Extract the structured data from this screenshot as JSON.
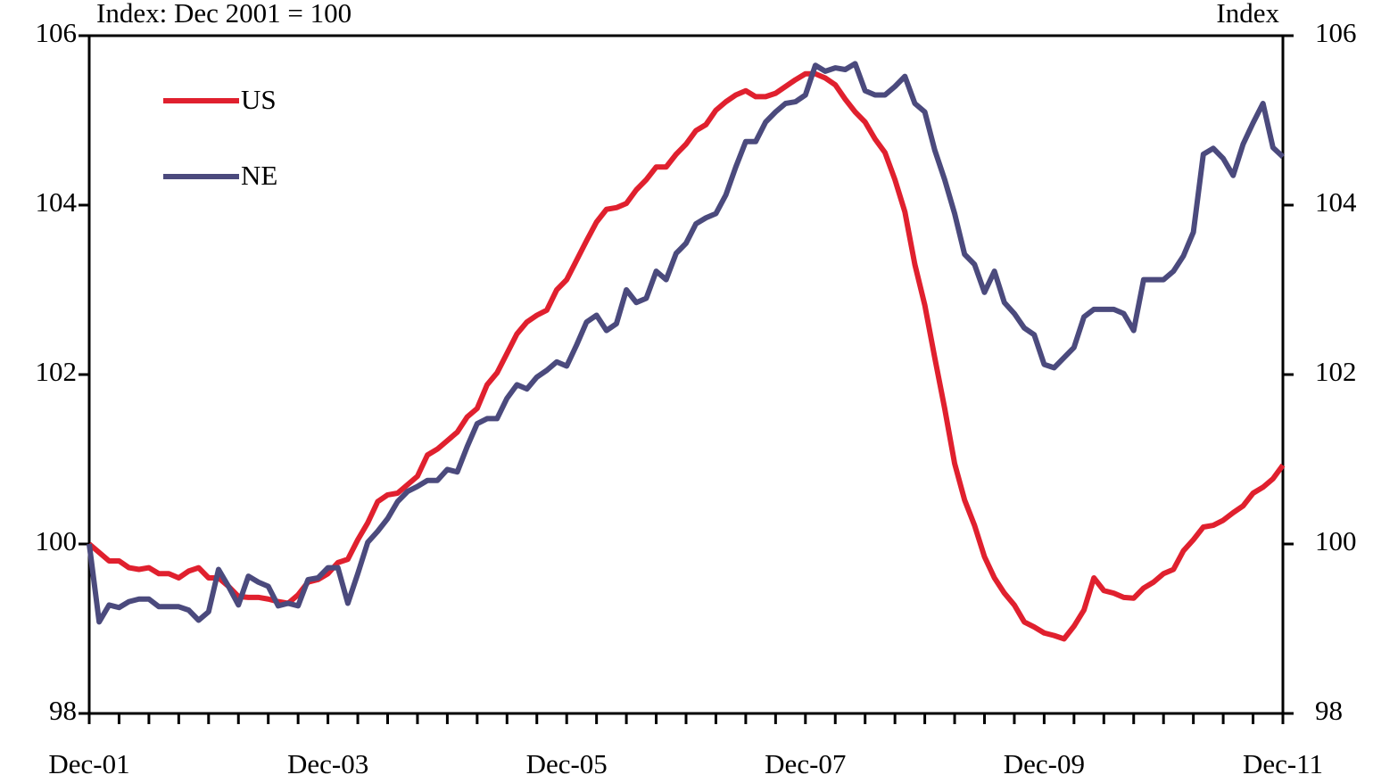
{
  "chart_data": {
    "type": "line",
    "y_label": "Index: Dec 2001 = 100",
    "y2_label": "Index",
    "categories": [
      "Dec-01",
      null,
      null,
      null,
      null,
      null,
      null,
      null,
      null,
      null,
      null,
      null,
      null,
      null,
      null,
      null,
      null,
      null,
      null,
      null,
      null,
      null,
      null,
      null,
      "Dec-03",
      null,
      null,
      null,
      null,
      null,
      null,
      null,
      null,
      null,
      null,
      null,
      null,
      null,
      null,
      null,
      null,
      null,
      null,
      null,
      null,
      null,
      null,
      null,
      "Dec-05",
      null,
      null,
      null,
      null,
      null,
      null,
      null,
      null,
      null,
      null,
      null,
      null,
      null,
      null,
      null,
      null,
      null,
      null,
      null,
      null,
      null,
      null,
      null,
      "Dec-07",
      null,
      null,
      null,
      null,
      null,
      null,
      null,
      null,
      null,
      null,
      null,
      null,
      null,
      null,
      null,
      null,
      null,
      null,
      null,
      null,
      null,
      null,
      null,
      "Dec-09",
      null,
      null,
      null,
      null,
      null,
      null,
      null,
      null,
      null,
      null,
      null,
      null,
      null,
      null,
      null,
      null,
      null,
      null,
      null,
      null,
      null,
      null,
      null,
      "Dec-11"
    ],
    "series": [
      {
        "name": "US",
        "color": "#e0202e",
        "values": [
          100.0,
          99.9,
          99.8,
          99.8,
          99.72,
          99.7,
          99.72,
          99.65,
          99.65,
          99.6,
          99.68,
          99.72,
          99.6,
          99.6,
          99.5,
          99.38,
          99.37,
          99.37,
          99.35,
          99.32,
          99.3,
          99.4,
          99.55,
          99.58,
          99.65,
          99.78,
          99.82,
          100.05,
          100.25,
          100.5,
          100.58,
          100.6,
          100.7,
          100.8,
          101.05,
          101.12,
          101.22,
          101.32,
          101.5,
          101.6,
          101.88,
          102.02,
          102.25,
          102.48,
          102.62,
          102.7,
          102.76,
          103.0,
          103.12,
          103.35,
          103.58,
          103.8,
          103.95,
          103.97,
          104.02,
          104.18,
          104.3,
          104.45,
          104.45,
          104.6,
          104.72,
          104.88,
          104.95,
          105.12,
          105.22,
          105.3,
          105.35,
          105.28,
          105.28,
          105.32,
          105.4,
          105.48,
          105.55,
          105.55,
          105.5,
          105.42,
          105.25,
          105.1,
          104.98,
          104.78,
          104.62,
          104.3,
          103.92,
          103.3,
          102.82,
          102.2,
          101.6,
          100.95,
          100.52,
          100.22,
          99.85,
          99.6,
          99.42,
          99.28,
          99.08,
          99.02,
          98.95,
          98.92,
          98.88,
          99.03,
          99.22,
          99.6,
          99.45,
          99.42,
          99.37,
          99.36,
          99.48,
          99.55,
          99.65,
          99.7,
          99.92,
          100.05,
          100.2,
          100.22,
          100.28,
          100.37,
          100.45,
          100.6,
          100.67,
          100.77,
          100.93
        ]
      },
      {
        "name": "NE",
        "color": "#4b4a7d",
        "values": [
          100.0,
          99.08,
          99.28,
          99.25,
          99.32,
          99.35,
          99.35,
          99.26,
          99.26,
          99.26,
          99.22,
          99.1,
          99.2,
          99.7,
          99.5,
          99.28,
          99.62,
          99.55,
          99.5,
          99.27,
          99.3,
          99.27,
          99.58,
          99.6,
          99.72,
          99.72,
          99.3,
          99.65,
          100.02,
          100.15,
          100.3,
          100.5,
          100.62,
          100.68,
          100.75,
          100.75,
          100.88,
          100.85,
          101.15,
          101.42,
          101.48,
          101.48,
          101.72,
          101.88,
          101.83,
          101.97,
          102.05,
          102.15,
          102.1,
          102.35,
          102.62,
          102.7,
          102.52,
          102.6,
          103.0,
          102.85,
          102.9,
          103.22,
          103.12,
          103.43,
          103.55,
          103.78,
          103.85,
          103.9,
          104.12,
          104.45,
          104.75,
          104.75,
          104.98,
          105.1,
          105.2,
          105.22,
          105.3,
          105.65,
          105.58,
          105.62,
          105.6,
          105.67,
          105.35,
          105.3,
          105.3,
          105.4,
          105.52,
          105.2,
          105.1,
          104.65,
          104.3,
          103.9,
          103.42,
          103.3,
          102.97,
          103.22,
          102.85,
          102.72,
          102.55,
          102.47,
          102.12,
          102.08,
          102.2,
          102.32,
          102.68,
          102.77,
          102.77,
          102.77,
          102.72,
          102.52,
          103.12,
          103.12,
          103.12,
          103.22,
          103.4,
          103.68,
          104.6,
          104.67,
          104.55,
          104.35,
          104.72,
          104.97,
          105.2,
          104.68,
          104.57
        ]
      }
    ],
    "ylim": [
      98,
      106
    ],
    "yticks": [
      98,
      100,
      102,
      104,
      106
    ],
    "y2lim": [
      98,
      106
    ],
    "y2ticks": [
      98,
      100,
      102,
      104,
      106
    ],
    "grid": false,
    "legend": "top-left"
  }
}
